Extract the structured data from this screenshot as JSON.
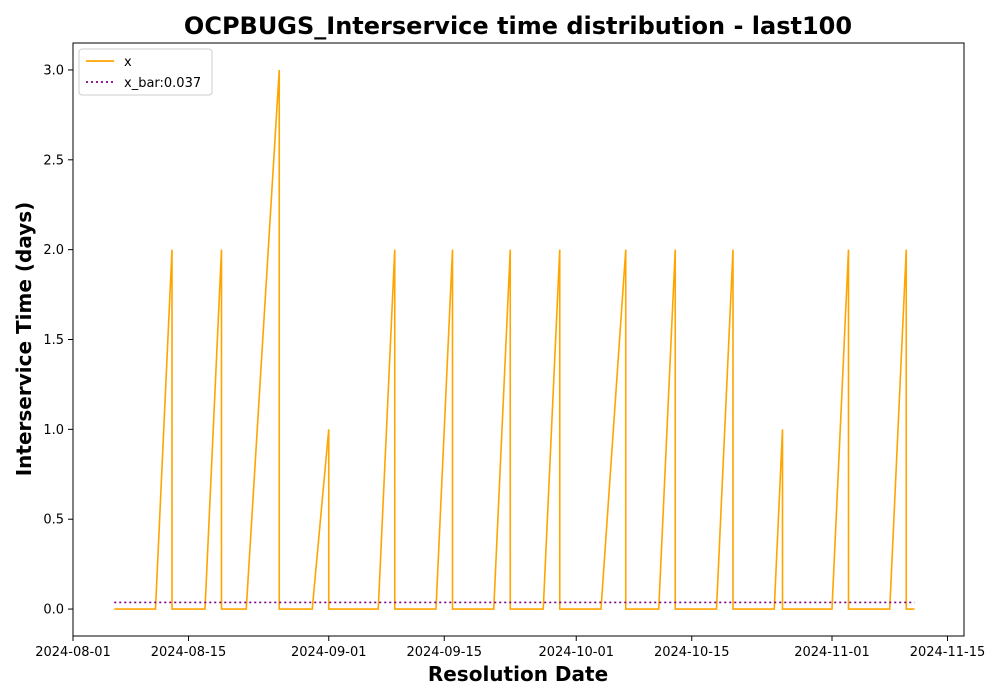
{
  "chart_data": {
    "type": "line",
    "title": "OCPBUGS_Interservice time distribution - last100",
    "xlabel": "Resolution Date",
    "ylabel": "Interservice Time (days)",
    "xlim": [
      "2024-08-01",
      "2024-11-17"
    ],
    "ylim": [
      -0.15,
      3.15
    ],
    "xticks": [
      "2024-08-01",
      "2024-08-15",
      "2024-09-01",
      "2024-09-15",
      "2024-10-01",
      "2024-10-15",
      "2024-11-01",
      "2024-11-15"
    ],
    "yticks": [
      0.0,
      0.5,
      1.0,
      1.5,
      2.0,
      2.5,
      3.0
    ],
    "ytick_labels": [
      "0.0",
      "0.5",
      "1.0",
      "1.5",
      "2.0",
      "2.5",
      "3.0"
    ],
    "legend_position": "upper-left",
    "grid": false,
    "series": [
      {
        "name": "x",
        "color": "#ffa500",
        "style": "solid",
        "x": [
          "2024-08-06",
          "2024-08-11",
          "2024-08-13",
          "2024-08-13",
          "2024-08-17",
          "2024-08-19",
          "2024-08-19",
          "2024-08-22",
          "2024-08-26",
          "2024-08-26",
          "2024-08-30",
          "2024-09-01",
          "2024-09-01",
          "2024-09-07",
          "2024-09-09",
          "2024-09-09",
          "2024-09-14",
          "2024-09-16",
          "2024-09-16",
          "2024-09-21",
          "2024-09-23",
          "2024-09-23",
          "2024-09-27",
          "2024-09-29",
          "2024-09-29",
          "2024-10-04",
          "2024-10-07",
          "2024-10-07",
          "2024-10-11",
          "2024-10-13",
          "2024-10-13",
          "2024-10-18",
          "2024-10-20",
          "2024-10-20",
          "2024-10-25",
          "2024-10-26",
          "2024-10-26",
          "2024-11-01",
          "2024-11-03",
          "2024-11-03",
          "2024-11-08",
          "2024-11-10",
          "2024-11-10",
          "2024-11-11"
        ],
        "y": [
          0,
          0,
          2,
          0,
          0,
          2,
          0,
          0,
          3,
          0,
          0,
          1,
          0,
          0,
          2,
          0,
          0,
          2,
          0,
          0,
          2,
          0,
          0,
          2,
          0,
          0,
          2,
          0,
          0,
          2,
          0,
          0,
          2,
          0,
          0,
          1,
          0,
          0,
          2,
          0,
          0,
          2,
          0,
          0
        ]
      },
      {
        "name": "x_bar:0.037",
        "color": "#800080",
        "style": "dotted",
        "x": [
          "2024-08-06",
          "2024-11-11"
        ],
        "y": [
          0.037,
          0.037
        ]
      }
    ]
  }
}
